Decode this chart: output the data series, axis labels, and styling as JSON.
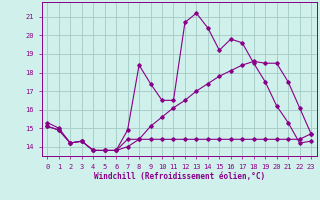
{
  "xlabel": "Windchill (Refroidissement éolien,°C)",
  "xlim": [
    -0.5,
    23.5
  ],
  "ylim": [
    13.5,
    21.8
  ],
  "yticks": [
    14,
    15,
    16,
    17,
    18,
    19,
    20,
    21
  ],
  "xticks": [
    0,
    1,
    2,
    3,
    4,
    5,
    6,
    7,
    8,
    9,
    10,
    11,
    12,
    13,
    14,
    15,
    16,
    17,
    18,
    19,
    20,
    21,
    22,
    23
  ],
  "bg_color": "#cff0eb",
  "grid_color": "#aacfc9",
  "line_color": "#880088",
  "line1_x": [
    0,
    1,
    2,
    3,
    4,
    5,
    6,
    7,
    8,
    9,
    10,
    11,
    12,
    13,
    14,
    15,
    16,
    17,
    18,
    19,
    20,
    21,
    22,
    23
  ],
  "line1_y": [
    15.3,
    15.0,
    14.2,
    14.3,
    13.8,
    13.8,
    13.8,
    14.9,
    18.4,
    17.4,
    16.5,
    16.5,
    20.7,
    21.2,
    20.4,
    19.2,
    19.8,
    19.6,
    18.5,
    17.5,
    16.2,
    15.3,
    14.2,
    14.3
  ],
  "line2_x": [
    0,
    1,
    2,
    3,
    4,
    5,
    6,
    7,
    8,
    9,
    10,
    11,
    12,
    13,
    14,
    15,
    16,
    17,
    18,
    19,
    20,
    21,
    22,
    23
  ],
  "line2_y": [
    15.1,
    14.9,
    14.2,
    14.3,
    13.8,
    13.8,
    13.8,
    14.4,
    14.4,
    14.4,
    14.4,
    14.4,
    14.4,
    14.4,
    14.4,
    14.4,
    14.4,
    14.4,
    14.4,
    14.4,
    14.4,
    14.4,
    14.4,
    14.7
  ],
  "line3_x": [
    0,
    1,
    2,
    3,
    4,
    5,
    6,
    7,
    8,
    9,
    10,
    11,
    12,
    13,
    14,
    15,
    16,
    17,
    18,
    19,
    20,
    21,
    22,
    23
  ],
  "line3_y": [
    15.1,
    14.9,
    14.2,
    14.3,
    13.8,
    13.8,
    13.8,
    14.0,
    14.4,
    15.1,
    15.6,
    16.1,
    16.5,
    17.0,
    17.4,
    17.8,
    18.1,
    18.4,
    18.6,
    18.5,
    18.5,
    17.5,
    16.1,
    14.7
  ]
}
